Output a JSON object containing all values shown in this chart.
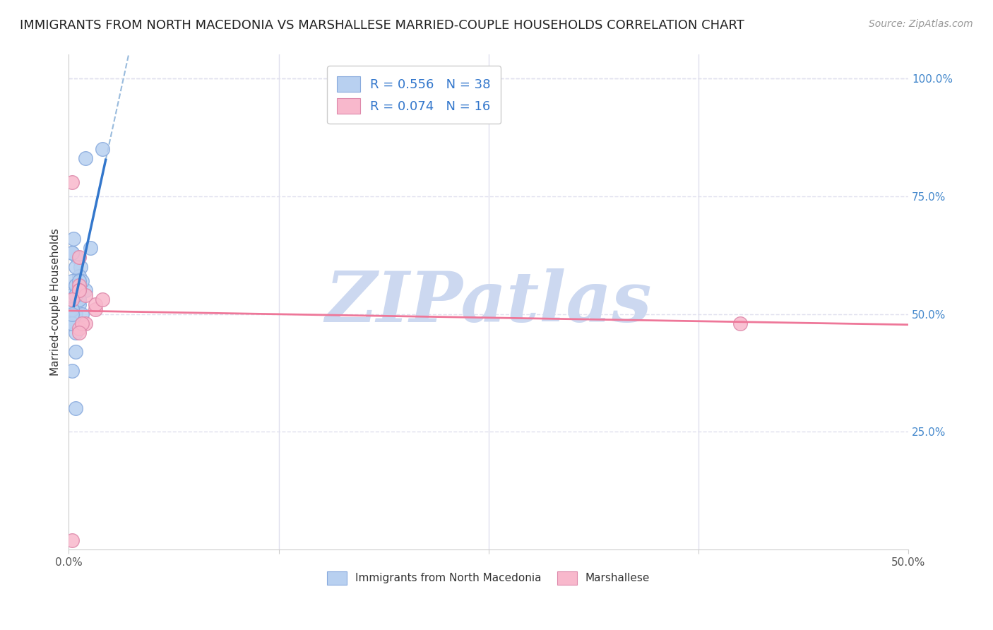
{
  "title": "IMMIGRANTS FROM NORTH MACEDONIA VS MARSHALLESE MARRIED-COUPLE HOUSEHOLDS CORRELATION CHART",
  "source": "Source: ZipAtlas.com",
  "ylabel": "Married-couple Households",
  "yticks_labels": [
    "100.0%",
    "75.0%",
    "50.0%",
    "25.0%"
  ],
  "ytick_vals": [
    1.0,
    0.75,
    0.5,
    0.25
  ],
  "xtick_labels": [
    "0.0%",
    "50.0%"
  ],
  "xlim": [
    0.0,
    0.5
  ],
  "ylim": [
    0.0,
    1.05
  ],
  "legend1_label": "R = 0.556   N = 38",
  "legend2_label": "R = 0.074   N = 16",
  "legend1_color": "#b8d0f0",
  "legend2_color": "#f8b8cc",
  "watermark": "ZIPatlas",
  "blue_scatter_x": [
    0.005,
    0.007,
    0.003,
    0.002,
    0.01,
    0.006,
    0.004,
    0.002,
    0.004,
    0.008,
    0.004,
    0.006,
    0.002,
    0.002,
    0.004,
    0.006,
    0.01,
    0.002,
    0.004,
    0.006,
    0.008,
    0.004,
    0.002,
    0.006,
    0.02,
    0.013,
    0.004,
    0.002,
    0.002,
    0.004,
    0.006,
    0.002,
    0.002,
    0.004,
    0.002,
    0.004,
    0.006,
    0.002
  ],
  "blue_scatter_y": [
    0.62,
    0.6,
    0.66,
    0.63,
    0.55,
    0.58,
    0.56,
    0.54,
    0.52,
    0.57,
    0.6,
    0.53,
    0.51,
    0.49,
    0.5,
    0.52,
    0.83,
    0.48,
    0.46,
    0.55,
    0.5,
    0.54,
    0.63,
    0.55,
    0.85,
    0.64,
    0.42,
    0.57,
    0.38,
    0.3,
    0.53,
    0.51,
    0.48,
    0.56,
    0.51,
    0.54,
    0.57,
    0.5
  ],
  "pink_scatter_x": [
    0.006,
    0.006,
    0.006,
    0.002,
    0.006,
    0.01,
    0.016,
    0.016,
    0.01,
    0.02,
    0.008,
    0.006,
    0.4,
    0.002,
    0.006,
    0.002
  ],
  "pink_scatter_y": [
    0.56,
    0.62,
    0.47,
    0.78,
    0.55,
    0.48,
    0.51,
    0.52,
    0.54,
    0.53,
    0.48,
    0.46,
    0.48,
    0.02,
    0.55,
    0.53
  ],
  "blue_line_color": "#3377cc",
  "pink_line_color": "#ee7799",
  "blue_dot_color": "#b8d0f0",
  "pink_dot_color": "#f8b8cc",
  "dot_edge_color_blue": "#88aadd",
  "dot_edge_color_pink": "#dd88aa",
  "grid_color": "#e0e0ee",
  "background_color": "#ffffff",
  "title_fontsize": 13,
  "source_fontsize": 10,
  "axis_label_fontsize": 11,
  "tick_fontsize": 11,
  "watermark_color": "#ccd8f0",
  "watermark_fontsize": 72,
  "dashed_line_color": "#99bbdd",
  "blue_line_x_start": 0.003,
  "blue_line_x_end": 0.022,
  "blue_line_dash_x_start": 0.022,
  "blue_line_dash_x_end": 0.44
}
